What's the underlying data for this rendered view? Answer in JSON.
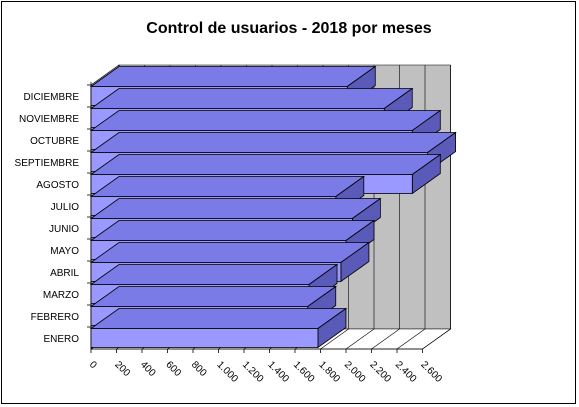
{
  "chart_data": {
    "type": "bar",
    "orientation": "horizontal",
    "style": "3d",
    "title": "Control de usuarios - 2018 por meses",
    "categories": [
      "ENERO",
      "FEBRERO",
      "MARZO",
      "ABRIL",
      "MAYO",
      "JUNIO",
      "JULIO",
      "AGOSTO",
      "SEPTIEMBRE",
      "OCTUBRE",
      "NOVIEMBRE",
      "DICIEMBRE"
    ],
    "series": [
      {
        "values": [
          1780,
          1700,
          1710,
          1960,
          2000,
          2050,
          1920,
          2520,
          2640,
          2520,
          2300,
          2010
        ],
        "color": "#9999ff"
      }
    ],
    "x_ticks": [
      "0",
      "200",
      "400",
      "600",
      "800",
      "1.000",
      "1.200",
      "1.400",
      "1.600",
      "1.800",
      "2.000",
      "2.200",
      "2.400",
      "2.600"
    ],
    "xlim": [
      0,
      2600
    ],
    "grid": true,
    "legend": false,
    "colors": {
      "bar_front": "#9999ff",
      "bar_top": "#7b7be8",
      "bar_side": "#5a5ab8",
      "back_wall": "#c0c0c0",
      "floor": "#ffffff"
    }
  }
}
